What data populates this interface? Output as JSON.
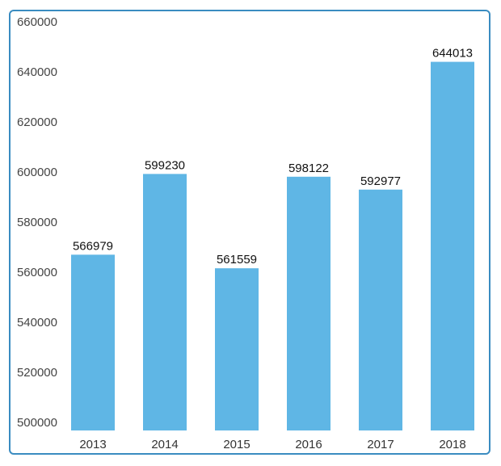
{
  "chart_data": {
    "type": "bar",
    "categories": [
      "2013",
      "2014",
      "2015",
      "2016",
      "2017",
      "2018"
    ],
    "values": [
      566979,
      599230,
      561559,
      598122,
      592977,
      644013
    ],
    "data_labels": [
      "566979",
      "599230",
      "561559",
      "598122",
      "592977",
      "644013"
    ],
    "title": "",
    "xlabel": "",
    "ylabel": "",
    "ylim": [
      497000,
      660000
    ],
    "yticks": [
      500000,
      520000,
      540000,
      560000,
      580000,
      600000,
      620000,
      640000,
      660000
    ],
    "ytick_labels": [
      "500000",
      "520000",
      "540000",
      "560000",
      "580000",
      "600000",
      "620000",
      "640000",
      "660000"
    ],
    "grid": false,
    "legend": "none",
    "colors": {
      "bar": "#5fb6e5",
      "border": "#3a8cc1"
    }
  }
}
